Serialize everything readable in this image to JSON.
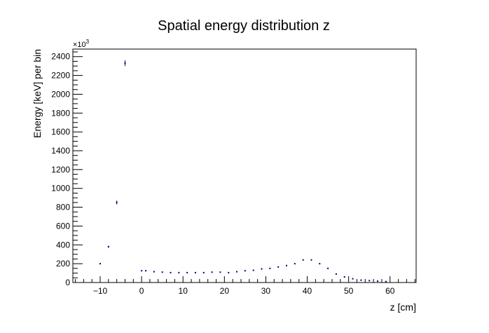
{
  "colors": {
    "background": "#ffffff",
    "frame": "#000000",
    "points": "#00007f"
  },
  "chart_data": {
    "type": "scatter",
    "title": "Spatial energy distribution z",
    "xlabel": "z [cm]",
    "ylabel": "Energy [keV] per bin",
    "y_multiplier_label": "×10",
    "y_multiplier_exponent": "3",
    "xlim": [
      -16.6,
      66.3
    ],
    "ylim": [
      0,
      2480
    ],
    "x_ticks": [
      -10,
      0,
      10,
      20,
      30,
      40,
      50,
      60
    ],
    "x_tick_labels": [
      "−10",
      "0",
      "10",
      "20",
      "30",
      "40",
      "50",
      "60"
    ],
    "y_ticks": [
      0,
      200,
      400,
      600,
      800,
      1000,
      1200,
      1400,
      1600,
      1800,
      2000,
      2200,
      2400
    ],
    "y_tick_labels": [
      "0",
      "200",
      "400",
      "600",
      "800",
      "1000",
      "1200",
      "1400",
      "1600",
      "1800",
      "2000",
      "2200",
      "2400"
    ],
    "grid": false,
    "legend": "none",
    "series": [
      {
        "x": [
          -10,
          -8,
          -6,
          -4,
          0,
          1,
          3,
          5,
          7,
          9,
          11,
          13,
          15,
          17,
          19,
          21,
          23,
          25,
          27,
          29,
          31,
          33,
          35,
          37,
          39,
          41,
          43,
          45,
          47,
          49,
          51,
          53,
          55,
          57,
          59
        ],
        "y": [
          200,
          380,
          850,
          2330,
          125,
          125,
          115,
          110,
          105,
          105,
          105,
          105,
          105,
          110,
          110,
          105,
          115,
          125,
          130,
          145,
          150,
          165,
          180,
          200,
          240,
          240,
          200,
          150,
          90,
          60,
          40,
          25,
          20,
          15,
          10
        ],
        "err": [
          5,
          10,
          20,
          30,
          3,
          3,
          3,
          3,
          3,
          3,
          3,
          3,
          3,
          3,
          3,
          3,
          3,
          3,
          3,
          3,
          3,
          3,
          3,
          4,
          4,
          4,
          4,
          3,
          3,
          2,
          2,
          2,
          2,
          2,
          2
        ]
      }
    ]
  }
}
